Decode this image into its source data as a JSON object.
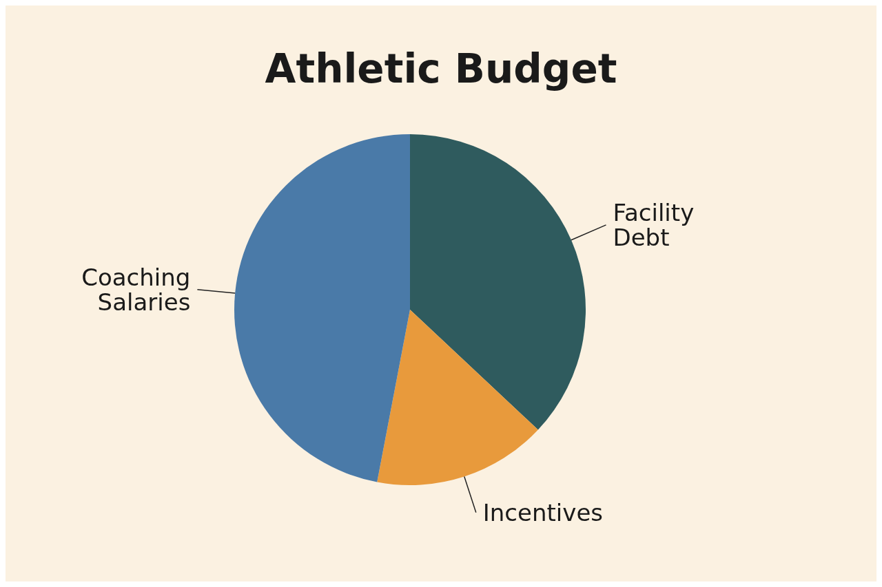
{
  "chart_data": {
    "type": "pie",
    "title": "Athletic Budget",
    "categories": [
      "Facility Debt",
      "Incentives",
      "Coaching Salaries"
    ],
    "values": [
      37,
      16,
      47
    ],
    "colors": [
      "#2f5b5e",
      "#e89a3c",
      "#4a7aa8"
    ]
  }
}
